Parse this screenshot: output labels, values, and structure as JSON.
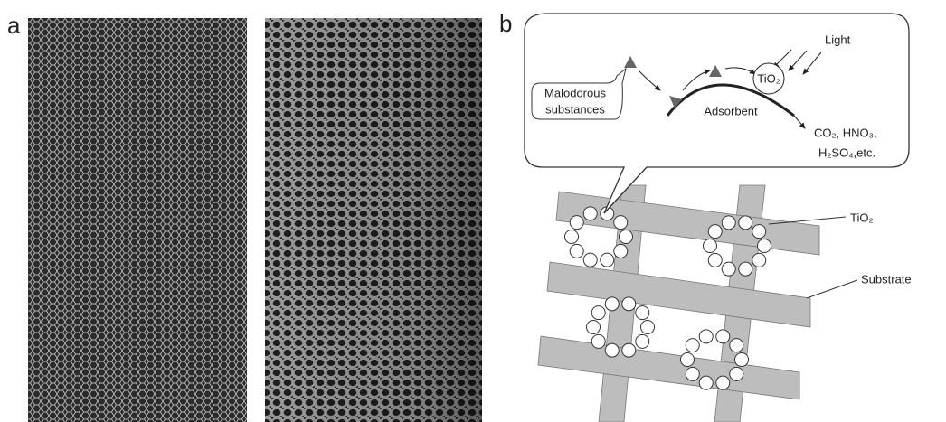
{
  "panel_a": {
    "label": "a"
  },
  "panel_b": {
    "label": "b",
    "callout": {
      "malodorous": [
        "Malodorous",
        "substances"
      ],
      "adsorbent": "Adsorbent",
      "light": "Light",
      "catalyst": "TiO₂",
      "products": [
        "CO₂, HNO₃,",
        "H₂SO₄,etc."
      ]
    },
    "labels": {
      "tio2": "TiO₂",
      "substrate": "Substrate"
    }
  }
}
